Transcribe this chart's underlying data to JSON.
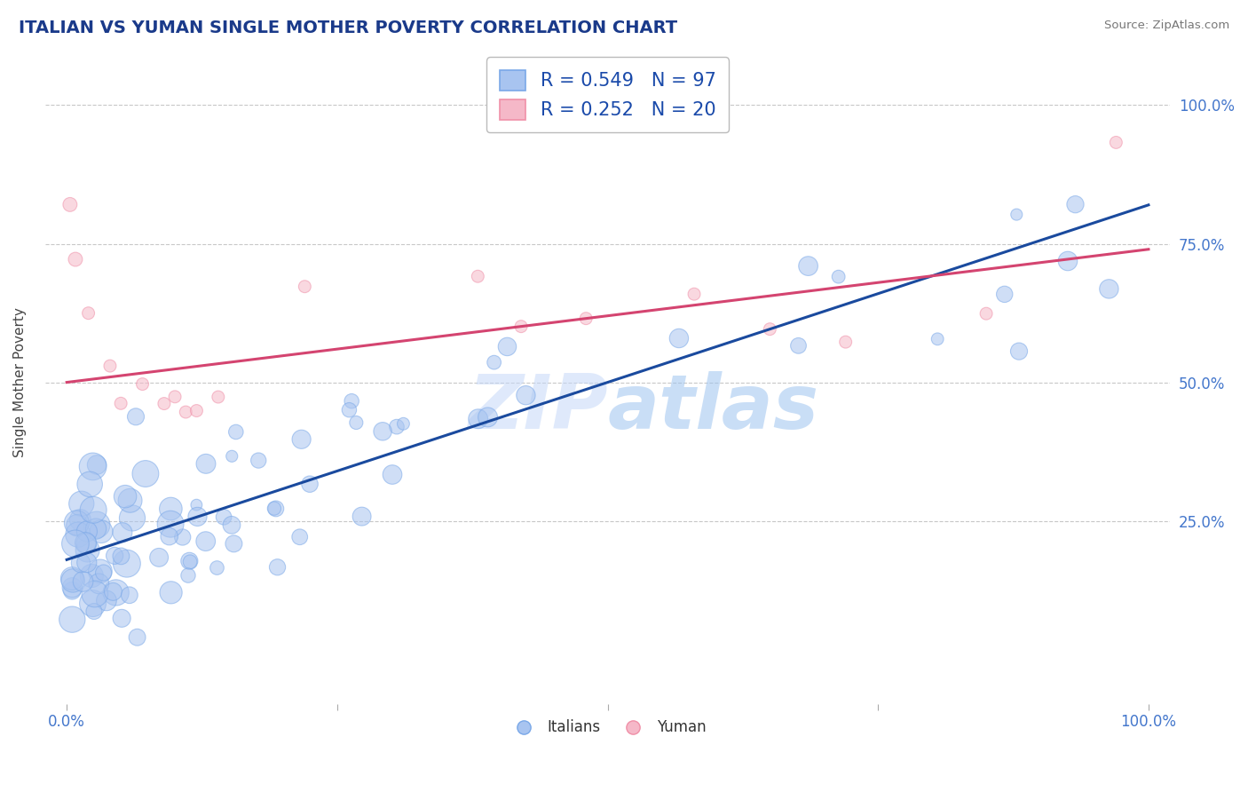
{
  "title": "ITALIAN VS YUMAN SINGLE MOTHER POVERTY CORRELATION CHART",
  "source": "Source: ZipAtlas.com",
  "ylabel": "Single Mother Poverty",
  "xlim": [
    -0.02,
    1.02
  ],
  "ylim": [
    -0.08,
    1.08
  ],
  "x_tick_labels": [
    "0.0%",
    "",
    "",
    "",
    "100.0%"
  ],
  "y_tick_labels_right": [
    "25.0%",
    "50.0%",
    "75.0%",
    "100.0%"
  ],
  "blue_face_color": "#a8c4f0",
  "blue_edge_color": "#7aa8e8",
  "pink_face_color": "#f5b8c8",
  "pink_edge_color": "#f090a8",
  "blue_line_color": "#1a4a9e",
  "pink_line_color": "#d44470",
  "r_blue": 0.549,
  "n_blue": 97,
  "r_pink": 0.252,
  "n_pink": 20,
  "watermark": "ZIPatlas",
  "background_color": "#ffffff",
  "grid_color": "#c8c8c8",
  "title_color": "#1a3a8a",
  "tick_color": "#4477cc",
  "blue_line_start_y": 0.18,
  "blue_line_end_y": 0.82,
  "pink_line_start_y": 0.5,
  "pink_line_end_y": 0.74
}
